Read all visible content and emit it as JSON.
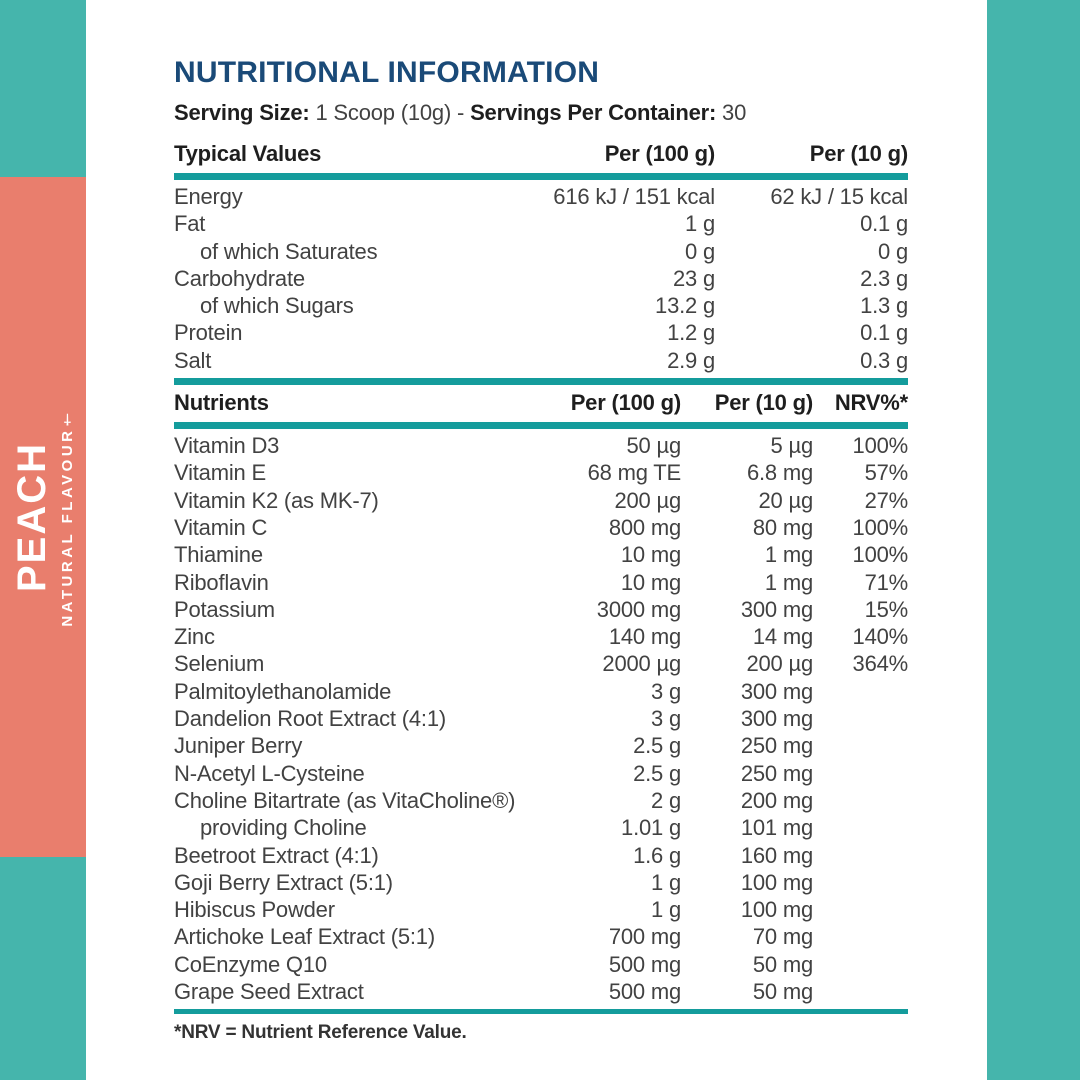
{
  "sidebar": {
    "flavor": "PEACH",
    "subtitle": "NATURAL FLAVOUR†"
  },
  "header": {
    "title": "NUTRITIONAL INFORMATION",
    "serving_size_label": "Serving Size:",
    "serving_size_value": "1 Scoop (10g)",
    "separator": "-",
    "servings_label": "Servings Per Container:",
    "servings_value": "30"
  },
  "typical_values": {
    "col_label": "Typical Values",
    "col_per100": "Per (100 g)",
    "col_per10": "Per (10 g)",
    "rows": [
      {
        "label": "Energy",
        "per100": "616 kJ / 151 kcal",
        "per10": "62 kJ / 15 kcal",
        "indent": false
      },
      {
        "label": "Fat",
        "per100": "1 g",
        "per10": "0.1 g",
        "indent": false
      },
      {
        "label": "of which Saturates",
        "per100": "0 g",
        "per10": "0 g",
        "indent": true
      },
      {
        "label": "Carbohydrate",
        "per100": "23 g",
        "per10": "2.3 g",
        "indent": false
      },
      {
        "label": "of which Sugars",
        "per100": "13.2 g",
        "per10": "1.3 g",
        "indent": true
      },
      {
        "label": "Protein",
        "per100": "1.2 g",
        "per10": "0.1 g",
        "indent": false
      },
      {
        "label": "Salt",
        "per100": "2.9 g",
        "per10": "0.3 g",
        "indent": false
      }
    ]
  },
  "nutrients": {
    "col_label": "Nutrients",
    "col_per100": "Per (100 g)",
    "col_per10": "Per (10 g)",
    "col_nrv": "NRV%*",
    "rows": [
      {
        "label": "Vitamin D3",
        "per100": "50 µg",
        "per10": "5 µg",
        "nrv": "100%",
        "indent": false
      },
      {
        "label": "Vitamin E",
        "per100": "68 mg TE",
        "per10": "6.8 mg",
        "nrv": "57%",
        "indent": false
      },
      {
        "label": "Vitamin K2 (as MK-7)",
        "per100": "200 µg",
        "per10": "20 µg",
        "nrv": "27%",
        "indent": false
      },
      {
        "label": "Vitamin C",
        "per100": "800 mg",
        "per10": "80 mg",
        "nrv": "100%",
        "indent": false
      },
      {
        "label": "Thiamine",
        "per100": "10 mg",
        "per10": "1 mg",
        "nrv": "100%",
        "indent": false
      },
      {
        "label": "Riboflavin",
        "per100": "10 mg",
        "per10": "1 mg",
        "nrv": "71%",
        "indent": false
      },
      {
        "label": "Potassium",
        "per100": "3000 mg",
        "per10": "300 mg",
        "nrv": "15%",
        "indent": false
      },
      {
        "label": "Zinc",
        "per100": "140 mg",
        "per10": "14 mg",
        "nrv": "140%",
        "indent": false
      },
      {
        "label": "Selenium",
        "per100": "2000 µg",
        "per10": "200 µg",
        "nrv": "364%",
        "indent": false
      },
      {
        "label": "Palmitoylethanolamide",
        "per100": "3 g",
        "per10": "300 mg",
        "nrv": "",
        "indent": false
      },
      {
        "label": "Dandelion Root Extract (4:1)",
        "per100": "3 g",
        "per10": "300 mg",
        "nrv": "",
        "indent": false
      },
      {
        "label": "Juniper Berry",
        "per100": "2.5 g",
        "per10": "250 mg",
        "nrv": "",
        "indent": false
      },
      {
        "label": "N-Acetyl L-Cysteine",
        "per100": "2.5 g",
        "per10": "250 mg",
        "nrv": "",
        "indent": false
      },
      {
        "label": "Choline Bitartrate (as VitaCholine®)",
        "per100": "2 g",
        "per10": "200 mg",
        "nrv": "",
        "indent": false
      },
      {
        "label": "providing Choline",
        "per100": "1.01 g",
        "per10": "101 mg",
        "nrv": "",
        "indent": true
      },
      {
        "label": "Beetroot Extract (4:1)",
        "per100": "1.6 g",
        "per10": "160 mg",
        "nrv": "",
        "indent": false
      },
      {
        "label": "Goji Berry Extract (5:1)",
        "per100": "1 g",
        "per10": "100 mg",
        "nrv": "",
        "indent": false
      },
      {
        "label": "Hibiscus Powder",
        "per100": "1 g",
        "per10": "100 mg",
        "nrv": "",
        "indent": false
      },
      {
        "label": "Artichoke Leaf Extract (5:1)",
        "per100": "700 mg",
        "per10": "70 mg",
        "nrv": "",
        "indent": false
      },
      {
        "label": "CoEnzyme Q10",
        "per100": "500 mg",
        "per10": "50 mg",
        "nrv": "",
        "indent": false
      },
      {
        "label": "Grape Seed Extract",
        "per100": "500 mg",
        "per10": "50 mg",
        "nrv": "",
        "indent": false
      }
    ]
  },
  "footnote": "*NRV = Nutrient Reference Value.",
  "colors": {
    "teal": "#45b5ac",
    "coral": "#e97e6d",
    "navy": "#1a4a78",
    "rule": "#149c9c",
    "text": "#424242"
  }
}
